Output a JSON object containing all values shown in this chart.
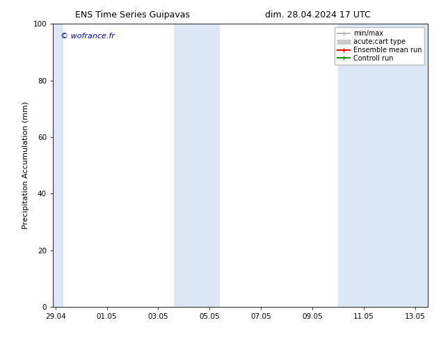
{
  "title_left": "ENS Time Series Guipavas",
  "title_right": "dim. 28.04.2024 17 UTC",
  "ylabel": "Precipitation Accumulation (mm)",
  "watermark": "© wofrance.fr",
  "watermark_color": "#0000cc",
  "ylim": [
    0,
    100
  ],
  "xlim_start": -0.1,
  "xlim_end": 14.5,
  "xtick_labels": [
    "29.04",
    "01.05",
    "03.05",
    "05.05",
    "07.05",
    "09.05",
    "11.05",
    "13.05"
  ],
  "xtick_positions": [
    0,
    2,
    4,
    6,
    8,
    10,
    12,
    14
  ],
  "ytick_labels": [
    "0",
    "20",
    "40",
    "60",
    "80",
    "100"
  ],
  "ytick_positions": [
    0,
    20,
    40,
    60,
    80,
    100
  ],
  "shaded_regions": [
    {
      "x_start": -0.1,
      "x_end": 0.3,
      "color": "#dce8f5"
    },
    {
      "x_start": 4.6,
      "x_end": 6.4,
      "color": "#dce8f5"
    },
    {
      "x_start": 11.0,
      "x_end": 14.5,
      "color": "#dce8f5"
    }
  ],
  "legend_items": [
    {
      "label": "min/max",
      "color": "#aaaaaa",
      "lw": 1.2,
      "thick": false
    },
    {
      "label": "acute;cart type",
      "color": "#cccccc",
      "lw": 5,
      "thick": true
    },
    {
      "label": "Ensemble mean run",
      "color": "#ff0000",
      "lw": 1.5,
      "thick": false
    },
    {
      "label": "Controll run",
      "color": "#228822",
      "lw": 1.5,
      "thick": false
    }
  ],
  "bg_color": "#ffffff",
  "plot_bg_color": "#ffffff",
  "title_fontsize": 9,
  "legend_fontsize": 7,
  "tick_fontsize": 7.5,
  "ylabel_fontsize": 8
}
